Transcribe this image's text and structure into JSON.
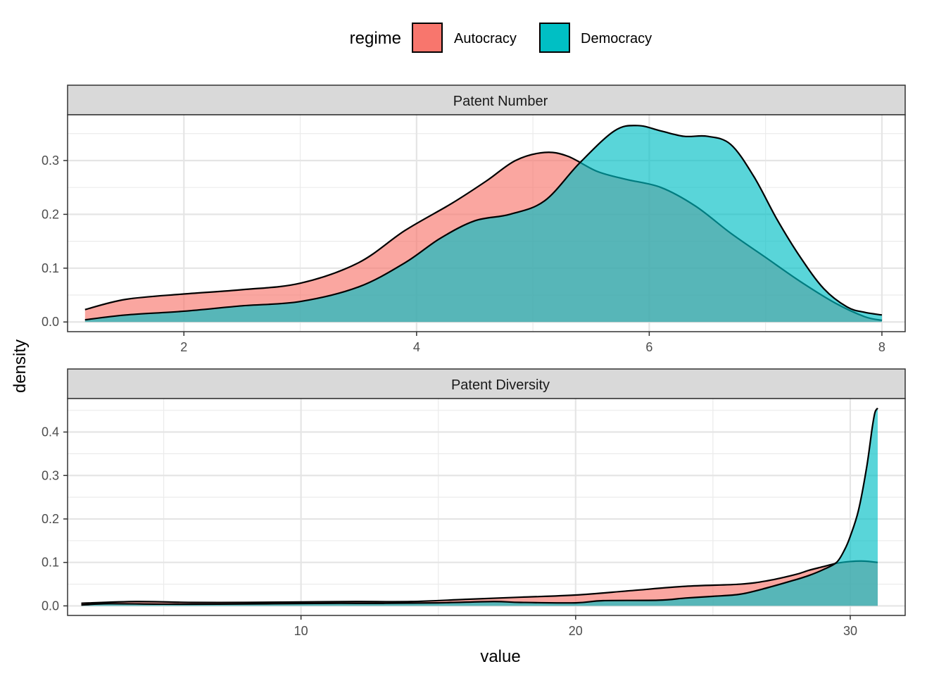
{
  "chart_data": {
    "type": "area",
    "ylabel": "density",
    "xlabel": "value",
    "legend": {
      "title": "regime",
      "placement": "top",
      "entries": [
        {
          "name": "Autocracy",
          "color": "#F8766D"
        },
        {
          "name": "Democracy",
          "color": "#00BFC4"
        }
      ]
    },
    "grid": true,
    "panels": [
      {
        "title": "Patent Number",
        "xlim": [
          1.0,
          8.2
        ],
        "ylim": [
          -0.018,
          0.385
        ],
        "x_ticks": [
          2,
          4,
          6,
          8
        ],
        "x_tick_labels": [
          "2",
          "4",
          "6",
          "8"
        ],
        "y_ticks": [
          0.0,
          0.1,
          0.2,
          0.3
        ],
        "y_tick_labels": [
          "0.0",
          "0.1",
          "0.2",
          "0.3"
        ],
        "series": [
          {
            "name": "Autocracy",
            "x": [
              1.15,
              1.5,
              2.0,
              2.5,
              3.0,
              3.5,
              3.9,
              4.3,
              4.6,
              4.85,
              5.1,
              5.3,
              5.55,
              5.8,
              6.1,
              6.4,
              6.7,
              7.0,
              7.3,
              7.6,
              7.85,
              8.0
            ],
            "y": [
              0.023,
              0.042,
              0.052,
              0.06,
              0.072,
              0.11,
              0.17,
              0.22,
              0.262,
              0.3,
              0.315,
              0.308,
              0.28,
              0.265,
              0.25,
              0.215,
              0.165,
              0.12,
              0.075,
              0.035,
              0.01,
              0.003
            ]
          },
          {
            "name": "Democracy",
            "x": [
              1.15,
              1.5,
              2.0,
              2.5,
              3.0,
              3.5,
              3.9,
              4.2,
              4.5,
              4.8,
              5.1,
              5.4,
              5.7,
              5.9,
              6.1,
              6.3,
              6.5,
              6.7,
              6.9,
              7.1,
              7.3,
              7.5,
              7.7,
              7.85,
              8.0
            ],
            "y": [
              0.004,
              0.013,
              0.02,
              0.03,
              0.038,
              0.065,
              0.11,
              0.155,
              0.188,
              0.2,
              0.225,
              0.295,
              0.355,
              0.365,
              0.355,
              0.345,
              0.345,
              0.33,
              0.27,
              0.19,
              0.12,
              0.062,
              0.028,
              0.018,
              0.013
            ]
          }
        ]
      },
      {
        "title": "Patent Diversity",
        "xlim": [
          1.5,
          32.0
        ],
        "ylim": [
          -0.022,
          0.477
        ],
        "x_ticks": [
          10,
          20,
          30
        ],
        "x_tick_labels": [
          "10",
          "20",
          "30"
        ],
        "y_ticks": [
          0.0,
          0.1,
          0.2,
          0.3,
          0.4
        ],
        "y_tick_labels": [
          "0.0",
          "0.1",
          "0.2",
          "0.3",
          "0.4"
        ],
        "series": [
          {
            "name": "Autocracy",
            "x": [
              2.0,
              4.0,
              6.0,
              8.0,
              10.0,
              12.0,
              14.0,
              16.0,
              18.0,
              20.0,
              22.0,
              24.0,
              26.0,
              27.0,
              28.0,
              28.5,
              29.0,
              29.5,
              30.0,
              30.5,
              31.0
            ],
            "y": [
              0.006,
              0.01,
              0.008,
              0.008,
              0.009,
              0.01,
              0.01,
              0.015,
              0.02,
              0.025,
              0.035,
              0.045,
              0.05,
              0.058,
              0.072,
              0.082,
              0.09,
              0.098,
              0.102,
              0.103,
              0.1
            ]
          },
          {
            "name": "Democracy",
            "x": [
              2.0,
              3.0,
              5.0,
              7.0,
              9.0,
              11.0,
              13.0,
              15.0,
              17.0,
              18.0,
              20.0,
              21.0,
              23.0,
              24.0,
              25.0,
              26.0,
              27.0,
              28.0,
              28.5,
              29.0,
              29.5,
              29.8,
              30.0,
              30.3,
              30.6,
              30.8,
              30.9,
              31.0
            ],
            "y": [
              0.002,
              0.005,
              0.004,
              0.004,
              0.005,
              0.006,
              0.006,
              0.007,
              0.01,
              0.008,
              0.007,
              0.012,
              0.013,
              0.018,
              0.022,
              0.027,
              0.042,
              0.06,
              0.07,
              0.083,
              0.1,
              0.13,
              0.16,
              0.22,
              0.32,
              0.41,
              0.445,
              0.455
            ]
          }
        ]
      }
    ]
  }
}
